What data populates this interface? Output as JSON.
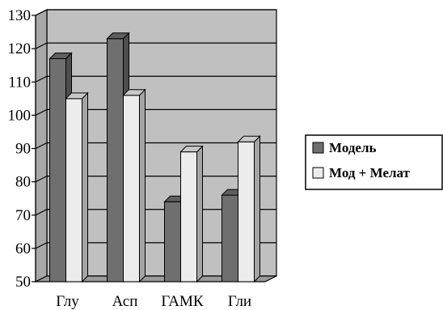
{
  "chart_data": {
    "type": "bar",
    "categories": [
      "Глу",
      "Асп",
      "ГАМК",
      "Гли"
    ],
    "series": [
      {
        "name": "Модель",
        "values": [
          117,
          123,
          74,
          76
        ],
        "color": "#6f6f6f"
      },
      {
        "name": "Мод + Мелат",
        "values": [
          105,
          106,
          89,
          92
        ],
        "color": "#ececec"
      }
    ],
    "ylim": [
      50,
      130
    ],
    "yticks": [
      50,
      60,
      70,
      80,
      90,
      100,
      110,
      120,
      130
    ],
    "grid": true,
    "legend_position": "right",
    "plot_background": "#c0c0c0",
    "title": "",
    "xlabel": "",
    "ylabel": ""
  }
}
